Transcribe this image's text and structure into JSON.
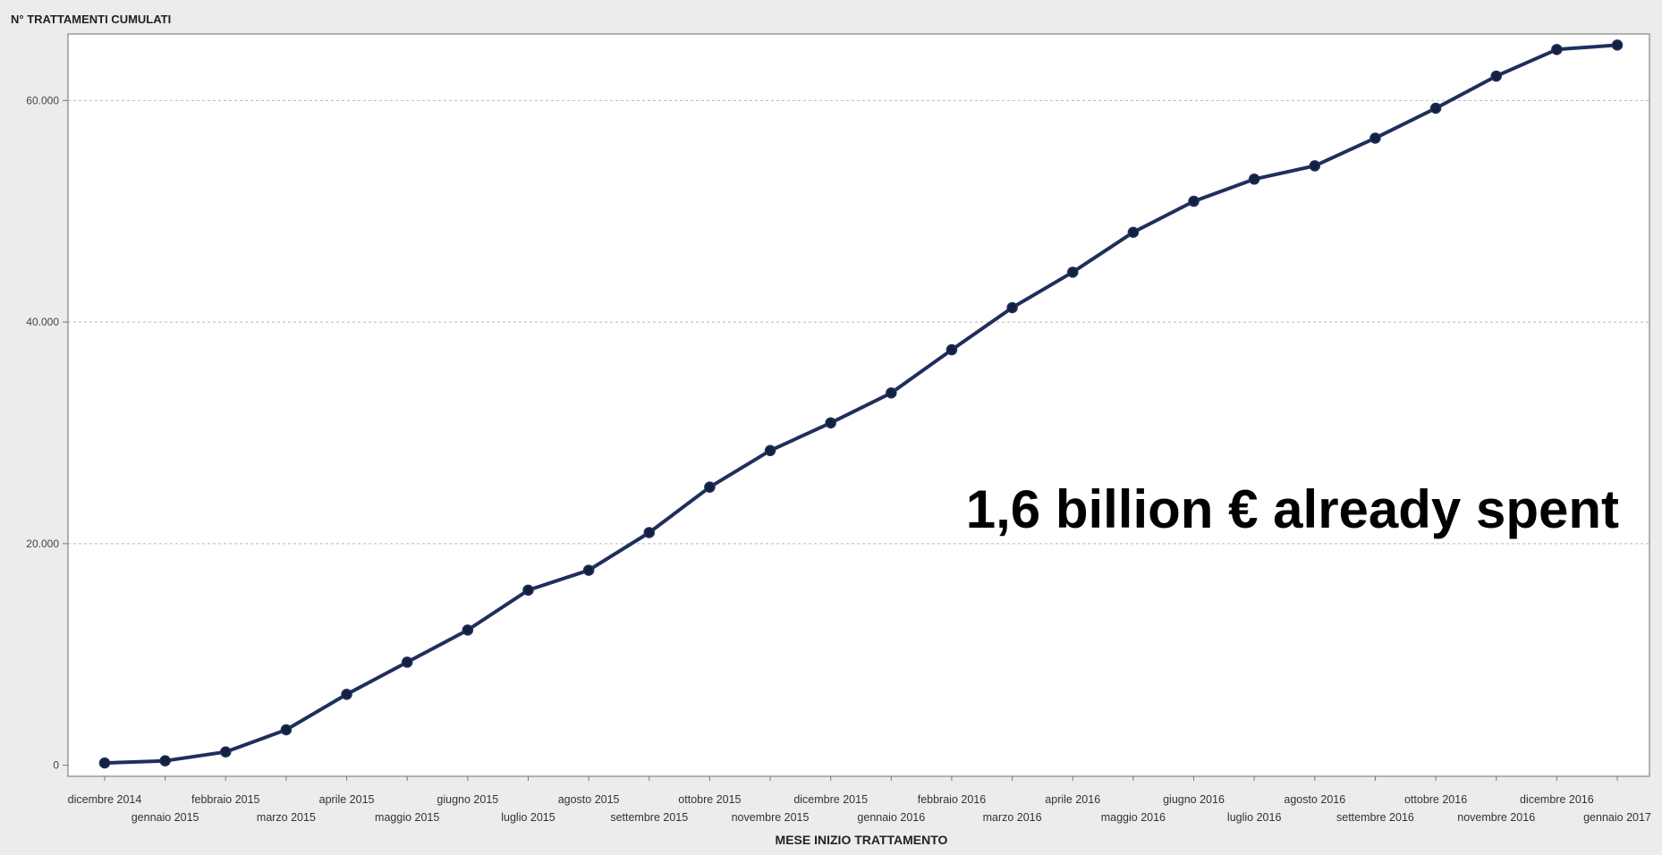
{
  "chart_data": {
    "type": "line",
    "ylabel": "N° TRATTAMENTI CUMULATI",
    "xlabel": "MESE INIZIO TRATTAMENTO",
    "annotation": "1,6 billion € already spent",
    "ylim": [
      -1000,
      66000
    ],
    "yticks": [
      0,
      20000,
      40000,
      60000
    ],
    "ytick_labels": [
      "0",
      "20.000",
      "40.000",
      "60.000"
    ],
    "grid_y": true,
    "line_color": "#1f2f5c",
    "categories": [
      "dicembre 2014",
      "gennaio 2015",
      "febbraio 2015",
      "marzo 2015",
      "aprile 2015",
      "maggio 2015",
      "giugno 2015",
      "luglio 2015",
      "agosto 2015",
      "settembre 2015",
      "ottobre 2015",
      "novembre 2015",
      "dicembre 2015",
      "gennaio 2016",
      "febbraio 2016",
      "marzo 2016",
      "aprile 2016",
      "maggio 2016",
      "giugno 2016",
      "luglio 2016",
      "agosto 2016",
      "settembre 2016",
      "ottobre 2016",
      "novembre 2016",
      "dicembre 2016",
      "gennaio 2017"
    ],
    "series": [
      {
        "values": [
          200,
          400,
          1200,
          3200,
          6400,
          9300,
          12200,
          15800,
          17600,
          21000,
          25100,
          28400,
          30900,
          33600,
          37500,
          41300,
          44500,
          48100,
          50900,
          52900,
          54100,
          56600,
          59300,
          62200,
          64600,
          65000
        ]
      }
    ]
  }
}
